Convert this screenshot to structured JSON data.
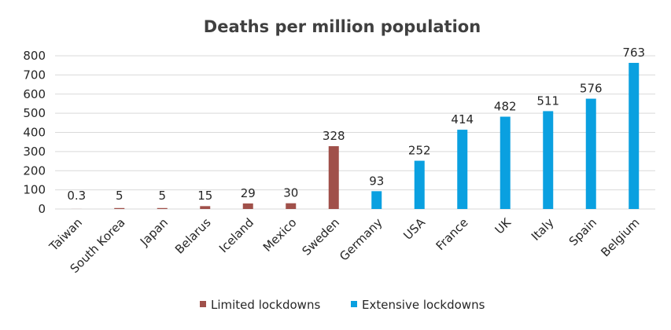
{
  "chart_data": {
    "type": "bar",
    "title": "Deaths per million population",
    "xlabel": "",
    "ylabel": "",
    "ylim": [
      0,
      800
    ],
    "yticks": [
      0,
      100,
      200,
      300,
      400,
      500,
      600,
      700,
      800
    ],
    "grid": true,
    "legend_position": "bottom",
    "categories": [
      "Taiwan",
      "South Korea",
      "Japan",
      "Belarus",
      "Iceland",
      "Mexico",
      "Sweden",
      "Germany",
      "USA",
      "France",
      "UK",
      "Italy",
      "Spain",
      "Belgium"
    ],
    "values": [
      0.3,
      5,
      5,
      15,
      29,
      30,
      328,
      93,
      252,
      414,
      482,
      511,
      576,
      763
    ],
    "data_labels": [
      "0.3",
      "5",
      "5",
      "15",
      "29",
      "30",
      "328",
      "93",
      "252",
      "414",
      "482",
      "511",
      "576",
      "763"
    ],
    "bar_group": [
      0,
      0,
      0,
      0,
      0,
      0,
      0,
      1,
      1,
      1,
      1,
      1,
      1,
      1
    ],
    "series": [
      {
        "name": "Limited lockdowns",
        "color": "#a0504a"
      },
      {
        "name": "Extensive lockdowns",
        "color": "#0aa0e0"
      }
    ]
  }
}
